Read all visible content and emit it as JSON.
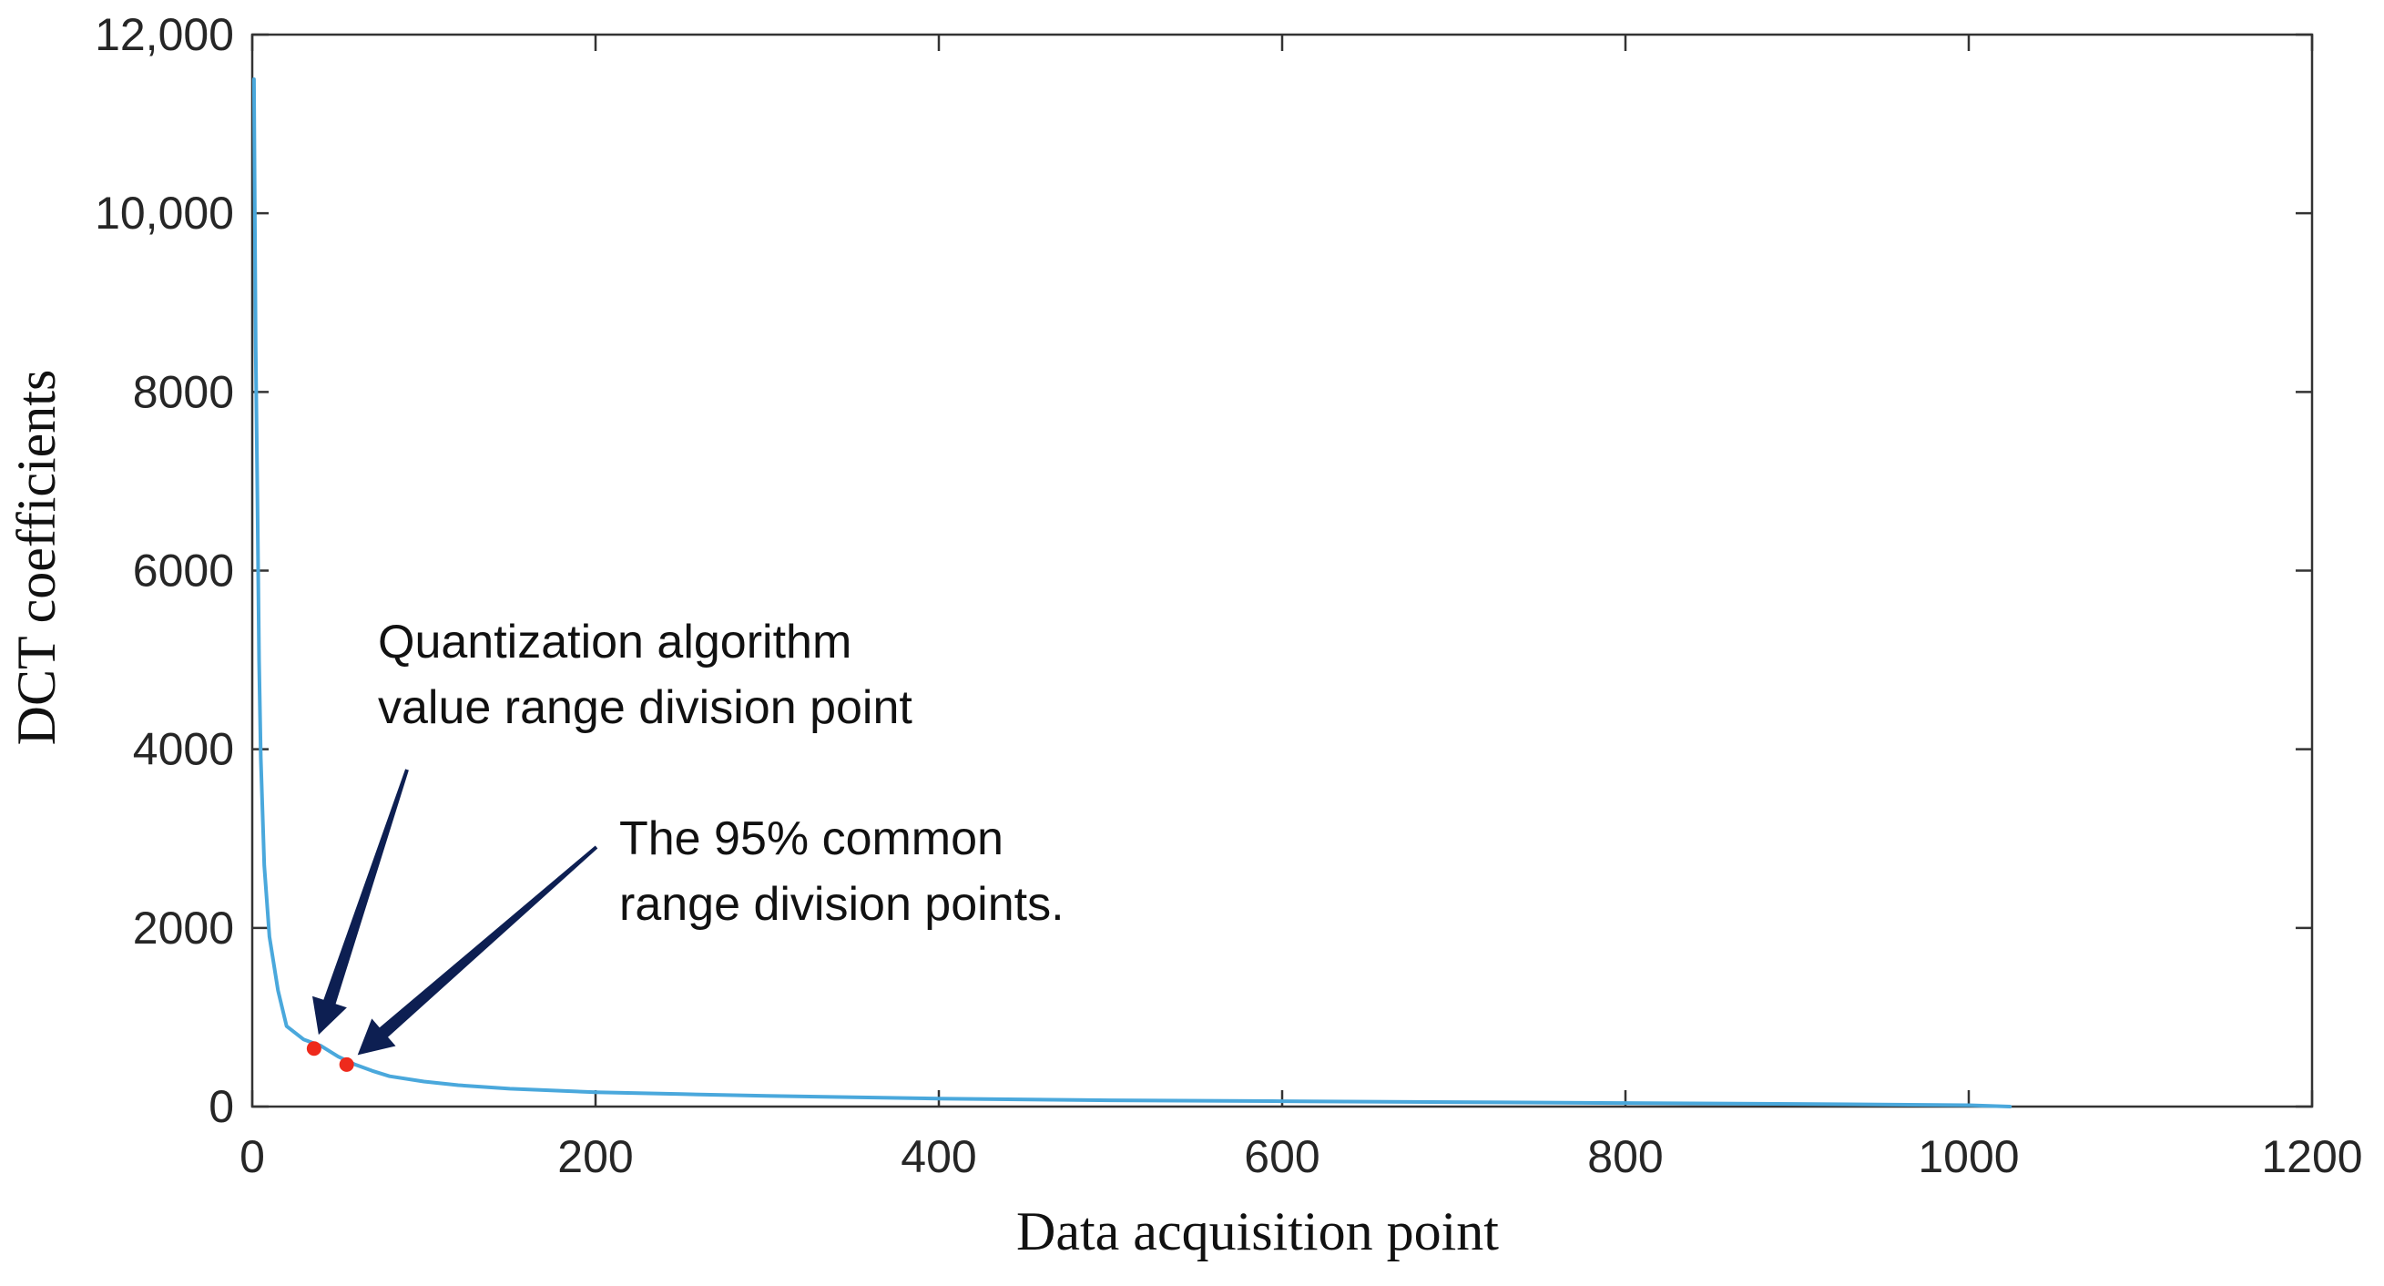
{
  "chart_data": {
    "type": "line",
    "title": "",
    "xlabel": "Data acquisition point",
    "ylabel": "DCT coefficients",
    "xlim": [
      0,
      1200
    ],
    "ylim": [
      0,
      12000
    ],
    "x_ticks": [
      0,
      200,
      400,
      600,
      800,
      1000,
      1200
    ],
    "x_tick_labels": [
      "0",
      "200",
      "400",
      "600",
      "800",
      "1000",
      "1200"
    ],
    "y_ticks": [
      0,
      2000,
      4000,
      6000,
      8000,
      10000,
      12000
    ],
    "y_tick_labels": [
      "0",
      "2000",
      "4000",
      "6000",
      "8000",
      "10,000",
      "12,000"
    ],
    "grid": false,
    "series": [
      {
        "color": "#4aa8dc",
        "x": [
          1,
          2,
          3,
          4,
          5,
          7,
          10,
          15,
          20,
          30,
          40,
          50,
          60,
          70,
          80,
          100,
          120,
          150,
          200,
          250,
          300,
          400,
          500,
          600,
          700,
          800,
          900,
          1000,
          1024
        ],
        "y": [
          11500,
          8500,
          6800,
          5000,
          3900,
          2700,
          1900,
          1300,
          900,
          750,
          680,
          560,
          470,
          400,
          340,
          280,
          240,
          200,
          160,
          140,
          120,
          90,
          70,
          60,
          50,
          40,
          30,
          15,
          0
        ]
      }
    ],
    "highlight_points": [
      {
        "x": 36,
        "y": 650,
        "color": "#ee2a1c"
      },
      {
        "x": 55,
        "y": 470,
        "color": "#ee2a1c"
      }
    ],
    "annotations": [
      {
        "lines": [
          "Quantization algorithm",
          "value range division point"
        ],
        "points_to": {
          "x": 36,
          "y": 650
        }
      },
      {
        "lines": [
          "The 95% common",
          "range division points."
        ],
        "points_to": {
          "x": 55,
          "y": 470
        }
      }
    ],
    "colors": {
      "line": "#4aa8dc",
      "axis": "#333333",
      "arrow": "#0d1f52",
      "highlight": "#ee2a1c"
    }
  }
}
